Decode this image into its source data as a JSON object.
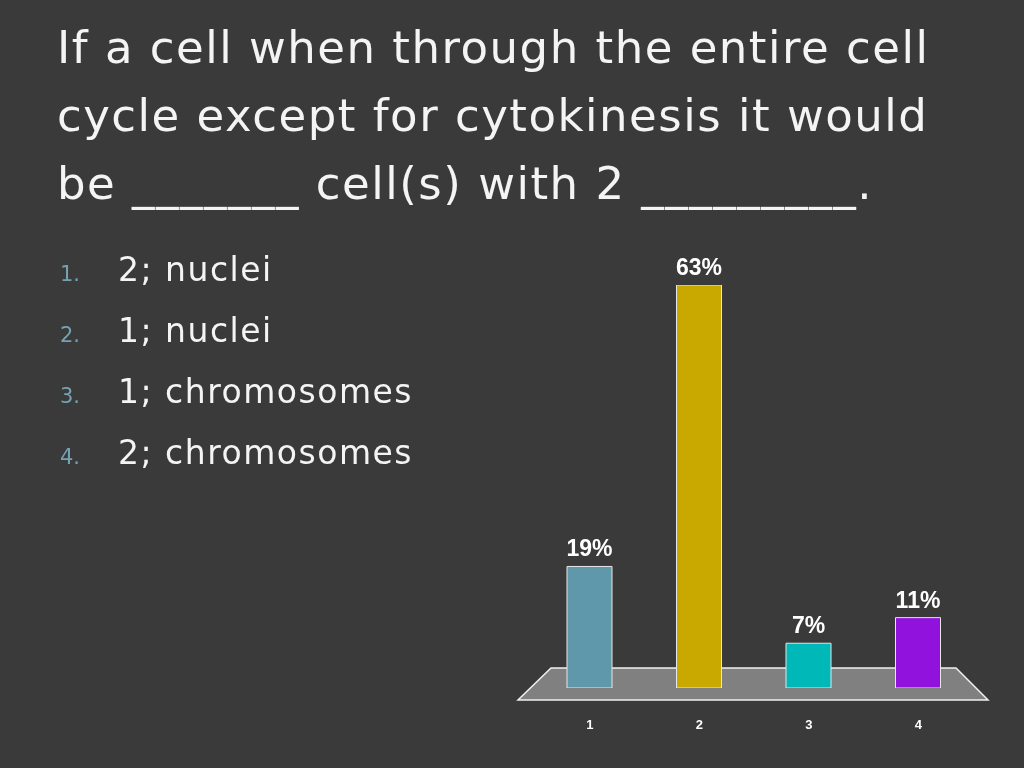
{
  "chart_data": {
    "type": "bar",
    "title": "If a cell when through the entire cell cycle except for cytokinesis it would be _______ cell(s) with 2 _________.",
    "categories": [
      "1",
      "2",
      "3",
      "4"
    ],
    "values": [
      19,
      63,
      7,
      11
    ],
    "colors": [
      "#5f97ab",
      "#c9a900",
      "#00b8b8",
      "#9112dc"
    ],
    "value_labels": [
      "19%",
      "63%",
      "7%",
      "11%"
    ],
    "annotations": [
      "1. 2; nuclei",
      "2. 1; nuclei",
      "3. 1; chromosomes",
      "4. 2; chromosomes"
    ]
  }
}
